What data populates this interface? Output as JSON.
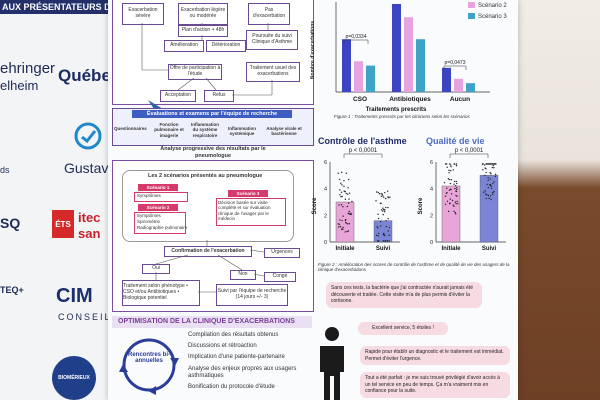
{
  "banner": {
    "heading": "AUX PRÉSENTATEURS DE",
    "logos": [
      "ehringer",
      "elheim",
      "Québec",
      "Gustav",
      "ds",
      "SQ",
      "ÉTS",
      "itec",
      "san",
      "TEQ+",
      "CIM",
      "CONSEIL",
      "BIOMÉRIEUX"
    ]
  },
  "flow": {
    "boxes": [
      "Exacerbation sévère",
      "Exacerbation légère ou modérée",
      "Pas d'exacerbation",
      "Plan d'action + 48h",
      "Amélioration",
      "Détérioration",
      "Poursuite du suivi Clinique d'Asthme",
      "Offre de participation à l'étude",
      "Traitement usuel des exacerbations",
      "Acceptation",
      "Refus"
    ],
    "eval_title": "Évaluations et examens par l'équipe de recherche",
    "eval_cols": [
      "Questionnaires",
      "Fonction pulmonaire et imagerie",
      "Inflammation du système respiratoire",
      "Inflammation systémique",
      "Analyse virale et bactérienne"
    ],
    "analysis": "Analyse progressive des résultats par le pneumologue",
    "scenarios_title": "Les 2 scénarios présentés au pneumologue",
    "scenario1_label": "Scénario 1",
    "scenario1_items": [
      "Symptômes"
    ],
    "scenario2_label": "Scénario 2",
    "scenario2_items": [
      "Symptômes",
      "Spirométrie",
      "Radiographie pulmonaire"
    ],
    "scenario3_label": "Scénario 3",
    "scenario3_text": "Décision basée sur visite complète et sur évaluation clinique de l'usager par le médecin",
    "confirmation": "Confirmation de l'exacerbation",
    "oui": "Oui",
    "non": "Non",
    "urgence": "Urgences",
    "conge": "Congé",
    "treatment": "Traitement selon phénotype • CSO et/ou Antibiotiques • Biologique potentiel",
    "followup": "Suivi par l'équipe de recherche (14 jours +/- 3)"
  },
  "optim": {
    "title": "OPTIMISATION DE LA CLINIQUE D'EXACERBATIONS",
    "cycle_label": "Rencontres bi-annuelles",
    "items": [
      "Compilation des résultats obtenus",
      "Discussions et rétroaction",
      "Implication d'une patiente-partenaire",
      "Analyse des enjeux propres aux usagers asthmatiques",
      "Bonification du protocole d'étude"
    ]
  },
  "bar_chart": {
    "ylabel": "Nombre d'exacerbations",
    "xlabel": "Traitements prescrits",
    "categories": [
      "CSO",
      "Antibiotiques",
      "Aucun"
    ],
    "legend": [
      "Scénario 2",
      "Scénario 3"
    ],
    "p_values": [
      "p=0,0334",
      "p=0,0473"
    ],
    "caption": "Figure 1 : Traitements prescrits par les cliniciens selon les scénarios",
    "colors": [
      "#3b45c4",
      "#e7a3e0",
      "#3fa3c8"
    ]
  },
  "chart_data": {
    "type": "bar",
    "categories": [
      "CSO",
      "Antibiotiques",
      "Aucun"
    ],
    "series": [
      {
        "name": "",
        "values": [
          24,
          40,
          11
        ]
      },
      {
        "name": "Scénario 2",
        "values": [
          14,
          34,
          6
        ]
      },
      {
        "name": "Scénario 3",
        "values": [
          12,
          24,
          4
        ]
      }
    ],
    "xlabel": "Traitements prescrits",
    "ylabel": "Nombre d'exacerbations"
  },
  "control": {
    "title1": "Contrôle de l'asthme",
    "title2": "Qualité de vie",
    "p1": "p < 0,0001",
    "p2": "p < 0,0001",
    "ylabel": "Score",
    "yticks1": [
      "6",
      "4",
      "2",
      "0"
    ],
    "yticks2": [
      "6",
      "4",
      "2",
      "0"
    ],
    "xticks": [
      "Initiale",
      "Suivi"
    ],
    "caption": "Figure 2 : Amélioration des scores de contrôle de l'asthme et de qualité de vie des usagers de la clinique d'exacerbations",
    "bar_colors": [
      "#e8a6d8",
      "#7a85d6"
    ]
  },
  "quotes": [
    "Sans ces tests, la bactérie que j'ai contractée n'aurait jamais été découverte et traitée. Cette visite m'a de plus permis d'éviter la cortisone.",
    "Excellent service, 5 étoiles !",
    "Rapide pour établir un diagnostic et le traitement est immédiat. Permet d'éviter l'urgence.",
    "Tout a été parfait : je me suis trouvé privilégié d'avoir accès à un tel service en peu de temps. Ça m'a vraiment mis en confiance pour la suite."
  ]
}
